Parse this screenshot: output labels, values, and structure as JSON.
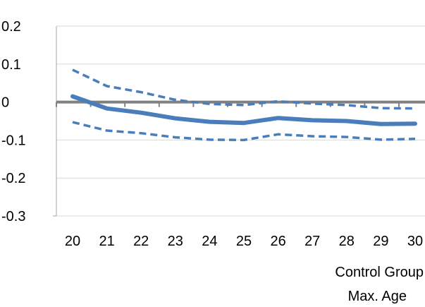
{
  "chart_data": {
    "type": "line",
    "x": [
      20,
      21,
      22,
      23,
      24,
      25,
      26,
      27,
      28,
      29,
      30
    ],
    "x_tick_labels": [
      "20",
      "21",
      "22",
      "23",
      "24",
      "25",
      "26",
      "27",
      "28",
      "29",
      "30"
    ],
    "y_tick_labels": [
      "0.2",
      "0.1",
      "0",
      "-0.1",
      "-0.2",
      "-0.3"
    ],
    "y_ticks": [
      0.2,
      0.1,
      0,
      -0.1,
      -0.2,
      -0.3
    ],
    "ylim": [
      -0.3,
      0.2
    ],
    "xlabel_lines": [
      "Control Group",
      "Max. Age"
    ],
    "ylabel": "",
    "title": "",
    "grid": "horizontal",
    "legend": "none",
    "series": [
      {
        "style": "solid",
        "values": [
          0.015,
          -0.017,
          -0.028,
          -0.043,
          -0.052,
          -0.055,
          -0.042,
          -0.048,
          -0.05,
          -0.058,
          -0.057
        ]
      },
      {
        "style": "dashed",
        "values": [
          0.085,
          0.042,
          0.026,
          0.006,
          -0.005,
          -0.008,
          0.002,
          -0.004,
          -0.008,
          -0.016,
          -0.017
        ]
      },
      {
        "style": "dashed",
        "values": [
          -0.053,
          -0.075,
          -0.082,
          -0.093,
          -0.099,
          -0.1,
          -0.085,
          -0.09,
          -0.092,
          -0.099,
          -0.097
        ]
      }
    ],
    "colors": {
      "series": "#4a7ebb",
      "zero_axis": "#808080",
      "grid": "#d9d9d9",
      "axis": "#a6a6a6"
    }
  }
}
